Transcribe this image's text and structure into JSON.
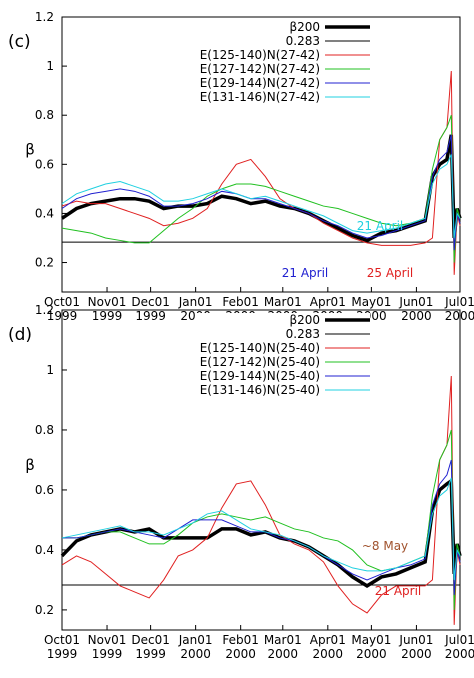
{
  "chart_data": [
    {
      "type": "line",
      "panel_label": "(c)",
      "y_label": "β",
      "legend": "upper right",
      "x": [
        0,
        10,
        20,
        30,
        40,
        50,
        60,
        70,
        80,
        90,
        100,
        110,
        120,
        130,
        140,
        150,
        160,
        170,
        180,
        190,
        200,
        210,
        220,
        230,
        240,
        250,
        255,
        260,
        265,
        268,
        270,
        272,
        274
      ],
      "xlim": [
        0,
        274
      ],
      "xticks": [
        {
          "value": 0,
          "label": "Oct01 1999"
        },
        {
          "value": 31,
          "label": "Nov01 1999"
        },
        {
          "value": 61,
          "label": "Dec01 1999"
        },
        {
          "value": 92,
          "label": "Jan01 2000"
        },
        {
          "value": 123,
          "label": "Feb01 2000"
        },
        {
          "value": 152,
          "label": "Mar01 2000"
        },
        {
          "value": 183,
          "label": "Apr01 2000"
        },
        {
          "value": 213,
          "label": "May01 2000"
        },
        {
          "value": 244,
          "label": "Jun01 2000"
        },
        {
          "value": 274,
          "label": "Jul01 2000"
        }
      ],
      "ylim": [
        0.08,
        1.2
      ],
      "yticks": [
        0.2,
        0.4,
        0.6,
        0.8,
        1,
        1.2
      ],
      "series": [
        {
          "name": "β200",
          "color": "#000000",
          "values": [
            0.38,
            0.42,
            0.44,
            0.45,
            0.46,
            0.46,
            0.45,
            0.42,
            0.43,
            0.43,
            0.44,
            0.47,
            0.46,
            0.44,
            0.45,
            0.43,
            0.42,
            0.4,
            0.37,
            0.34,
            0.31,
            0.29,
            0.32,
            0.33,
            0.35,
            0.37,
            0.55,
            0.6,
            0.62,
            0.72,
            0.3,
            0.42,
            0.38
          ]
        },
        {
          "name": "0.283",
          "color": "#000000",
          "values": [
            0.283,
            0.283,
            0.283,
            0.283,
            0.283,
            0.283,
            0.283,
            0.283,
            0.283,
            0.283,
            0.283,
            0.283,
            0.283,
            0.283,
            0.283,
            0.283,
            0.283,
            0.283,
            0.283,
            0.283,
            0.283,
            0.283,
            0.283,
            0.283,
            0.283,
            0.283,
            0.283,
            0.283,
            0.283,
            0.283,
            0.283,
            0.283,
            0.283
          ]
        },
        {
          "name": "E(125-140)N(27-42)",
          "color": "#e02020",
          "values": [
            0.43,
            0.45,
            0.44,
            0.44,
            0.42,
            0.4,
            0.38,
            0.35,
            0.36,
            0.38,
            0.42,
            0.52,
            0.6,
            0.62,
            0.55,
            0.46,
            0.42,
            0.4,
            0.36,
            0.33,
            0.3,
            0.28,
            0.27,
            0.27,
            0.27,
            0.28,
            0.3,
            0.7,
            0.75,
            0.98,
            0.15,
            0.4,
            0.35
          ]
        },
        {
          "name": "E(127-142)N(27-42)",
          "color": "#20c020",
          "values": [
            0.34,
            0.33,
            0.32,
            0.3,
            0.29,
            0.28,
            0.28,
            0.33,
            0.38,
            0.42,
            0.47,
            0.5,
            0.52,
            0.52,
            0.51,
            0.49,
            0.47,
            0.45,
            0.43,
            0.42,
            0.4,
            0.38,
            0.36,
            0.35,
            0.36,
            0.38,
            0.58,
            0.7,
            0.75,
            0.8,
            0.2,
            0.42,
            0.38
          ]
        },
        {
          "name": "E(129-144)N(27-42)",
          "color": "#2020d0",
          "values": [
            0.42,
            0.46,
            0.48,
            0.49,
            0.5,
            0.49,
            0.47,
            0.43,
            0.43,
            0.44,
            0.46,
            0.49,
            0.48,
            0.46,
            0.46,
            0.44,
            0.42,
            0.4,
            0.37,
            0.35,
            0.32,
            0.3,
            0.31,
            0.33,
            0.35,
            0.37,
            0.55,
            0.62,
            0.65,
            0.72,
            0.25,
            0.4,
            0.36
          ]
        },
        {
          "name": "E(131-146)N(27-42)",
          "color": "#20d0e0",
          "values": [
            0.44,
            0.48,
            0.5,
            0.52,
            0.53,
            0.51,
            0.49,
            0.45,
            0.45,
            0.46,
            0.48,
            0.5,
            0.48,
            0.46,
            0.47,
            0.45,
            0.43,
            0.41,
            0.39,
            0.36,
            0.33,
            0.32,
            0.33,
            0.34,
            0.36,
            0.38,
            0.52,
            0.58,
            0.6,
            0.64,
            0.3,
            0.4,
            0.38
          ]
        }
      ],
      "annotations": [
        "21 April",
        "21 April",
        "25 April"
      ]
    },
    {
      "type": "line",
      "panel_label": "(d)",
      "y_label": "β",
      "legend": "upper right",
      "x": [
        0,
        10,
        20,
        30,
        40,
        50,
        60,
        70,
        80,
        90,
        100,
        110,
        120,
        130,
        140,
        150,
        160,
        170,
        180,
        190,
        200,
        210,
        220,
        230,
        240,
        250,
        255,
        260,
        265,
        268,
        270,
        272,
        274
      ],
      "xlim": [
        0,
        274
      ],
      "xticks": [
        {
          "value": 0,
          "label": "Oct01 1999"
        },
        {
          "value": 31,
          "label": "Nov01 1999"
        },
        {
          "value": 61,
          "label": "Dec01 1999"
        },
        {
          "value": 92,
          "label": "Jan01 2000"
        },
        {
          "value": 123,
          "label": "Feb01 2000"
        },
        {
          "value": 152,
          "label": "Mar01 2000"
        },
        {
          "value": 183,
          "label": "Apr01 2000"
        },
        {
          "value": 213,
          "label": "May01 2000"
        },
        {
          "value": 244,
          "label": "Jun01 2000"
        },
        {
          "value": 274,
          "label": "Jul01 2000"
        }
      ],
      "ylim": [
        0.133,
        1.2
      ],
      "yticks": [
        0.2,
        0.4,
        0.6,
        0.8,
        1,
        1.2
      ],
      "series": [
        {
          "name": "β200",
          "color": "#000000",
          "values": [
            0.38,
            0.43,
            0.45,
            0.46,
            0.47,
            0.46,
            0.47,
            0.44,
            0.44,
            0.44,
            0.44,
            0.47,
            0.47,
            0.45,
            0.46,
            0.44,
            0.43,
            0.41,
            0.38,
            0.35,
            0.31,
            0.28,
            0.31,
            0.32,
            0.34,
            0.36,
            0.53,
            0.6,
            0.62,
            0.63,
            0.32,
            0.42,
            0.38
          ]
        },
        {
          "name": "0.283",
          "color": "#000000",
          "values": [
            0.283,
            0.283,
            0.283,
            0.283,
            0.283,
            0.283,
            0.283,
            0.283,
            0.283,
            0.283,
            0.283,
            0.283,
            0.283,
            0.283,
            0.283,
            0.283,
            0.283,
            0.283,
            0.283,
            0.283,
            0.283,
            0.283,
            0.283,
            0.283,
            0.283,
            0.283,
            0.283,
            0.283,
            0.283,
            0.283,
            0.283,
            0.283,
            0.283
          ]
        },
        {
          "name": "E(125-140)N(25-40)",
          "color": "#e02020",
          "values": [
            0.35,
            0.38,
            0.36,
            0.32,
            0.28,
            0.26,
            0.24,
            0.3,
            0.38,
            0.4,
            0.44,
            0.54,
            0.62,
            0.63,
            0.55,
            0.45,
            0.42,
            0.4,
            0.36,
            0.28,
            0.22,
            0.19,
            0.25,
            0.28,
            0.28,
            0.28,
            0.3,
            0.7,
            0.75,
            0.98,
            0.15,
            0.4,
            0.35
          ]
        },
        {
          "name": "E(127-142)N(25-40)",
          "color": "#20c020",
          "values": [
            0.44,
            0.44,
            0.45,
            0.46,
            0.46,
            0.44,
            0.42,
            0.42,
            0.45,
            0.49,
            0.51,
            0.52,
            0.51,
            0.5,
            0.51,
            0.49,
            0.47,
            0.46,
            0.44,
            0.43,
            0.4,
            0.35,
            0.33,
            0.34,
            0.36,
            0.38,
            0.58,
            0.7,
            0.75,
            0.8,
            0.2,
            0.42,
            0.38
          ]
        },
        {
          "name": "E(129-144)N(25-40)",
          "color": "#2020d0",
          "values": [
            0.44,
            0.44,
            0.45,
            0.46,
            0.47,
            0.46,
            0.45,
            0.44,
            0.47,
            0.5,
            0.5,
            0.5,
            0.48,
            0.46,
            0.46,
            0.44,
            0.43,
            0.41,
            0.38,
            0.35,
            0.32,
            0.3,
            0.32,
            0.34,
            0.35,
            0.37,
            0.55,
            0.62,
            0.65,
            0.7,
            0.25,
            0.4,
            0.36
          ]
        },
        {
          "name": "E(131-146)N(25-40)",
          "color": "#20d0e0",
          "values": [
            0.44,
            0.45,
            0.46,
            0.47,
            0.48,
            0.46,
            0.46,
            0.45,
            0.47,
            0.49,
            0.52,
            0.53,
            0.5,
            0.47,
            0.46,
            0.45,
            0.43,
            0.41,
            0.38,
            0.36,
            0.34,
            0.33,
            0.33,
            0.34,
            0.36,
            0.38,
            0.52,
            0.58,
            0.6,
            0.64,
            0.3,
            0.4,
            0.38
          ]
        }
      ],
      "annotations": [
        "~8 May",
        "21 April"
      ]
    }
  ]
}
